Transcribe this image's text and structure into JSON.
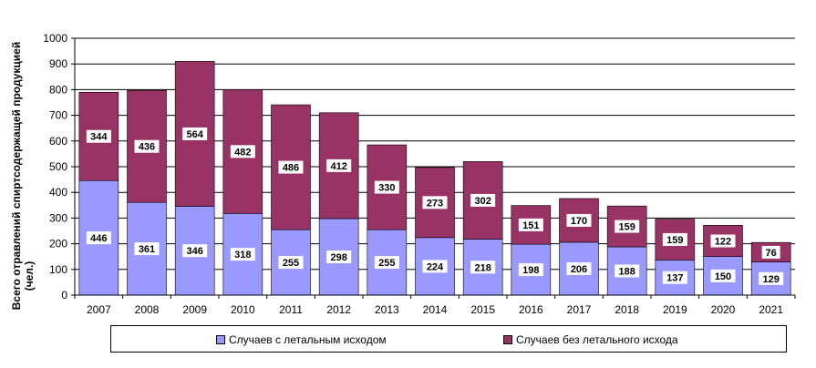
{
  "chart_data": {
    "type": "bar",
    "stacked": true,
    "categories": [
      "2007",
      "2008",
      "2009",
      "2010",
      "2011",
      "2012",
      "2013",
      "2014",
      "2015",
      "2016",
      "2017",
      "2018",
      "2019",
      "2020",
      "2021"
    ],
    "series": [
      {
        "name": "Случаев  с летальным исходом",
        "color": "#9999ff",
        "values": [
          446,
          361,
          346,
          318,
          255,
          298,
          255,
          224,
          218,
          198,
          206,
          188,
          137,
          150,
          129
        ]
      },
      {
        "name": "Случаев  без летального исхода",
        "color": "#993366",
        "values": [
          344,
          436,
          564,
          482,
          486,
          412,
          330,
          273,
          302,
          151,
          170,
          159,
          159,
          122,
          76
        ]
      }
    ],
    "ylabel": "Всего отравлений спиртсодержащей продукцией (чел.)",
    "ylim": [
      0,
      1000
    ],
    "yticks": [
      "0",
      "100",
      "200",
      "300",
      "400",
      "500",
      "600",
      "700",
      "800",
      "900",
      "1000"
    ],
    "grid": true,
    "legend_position": "bottom"
  }
}
